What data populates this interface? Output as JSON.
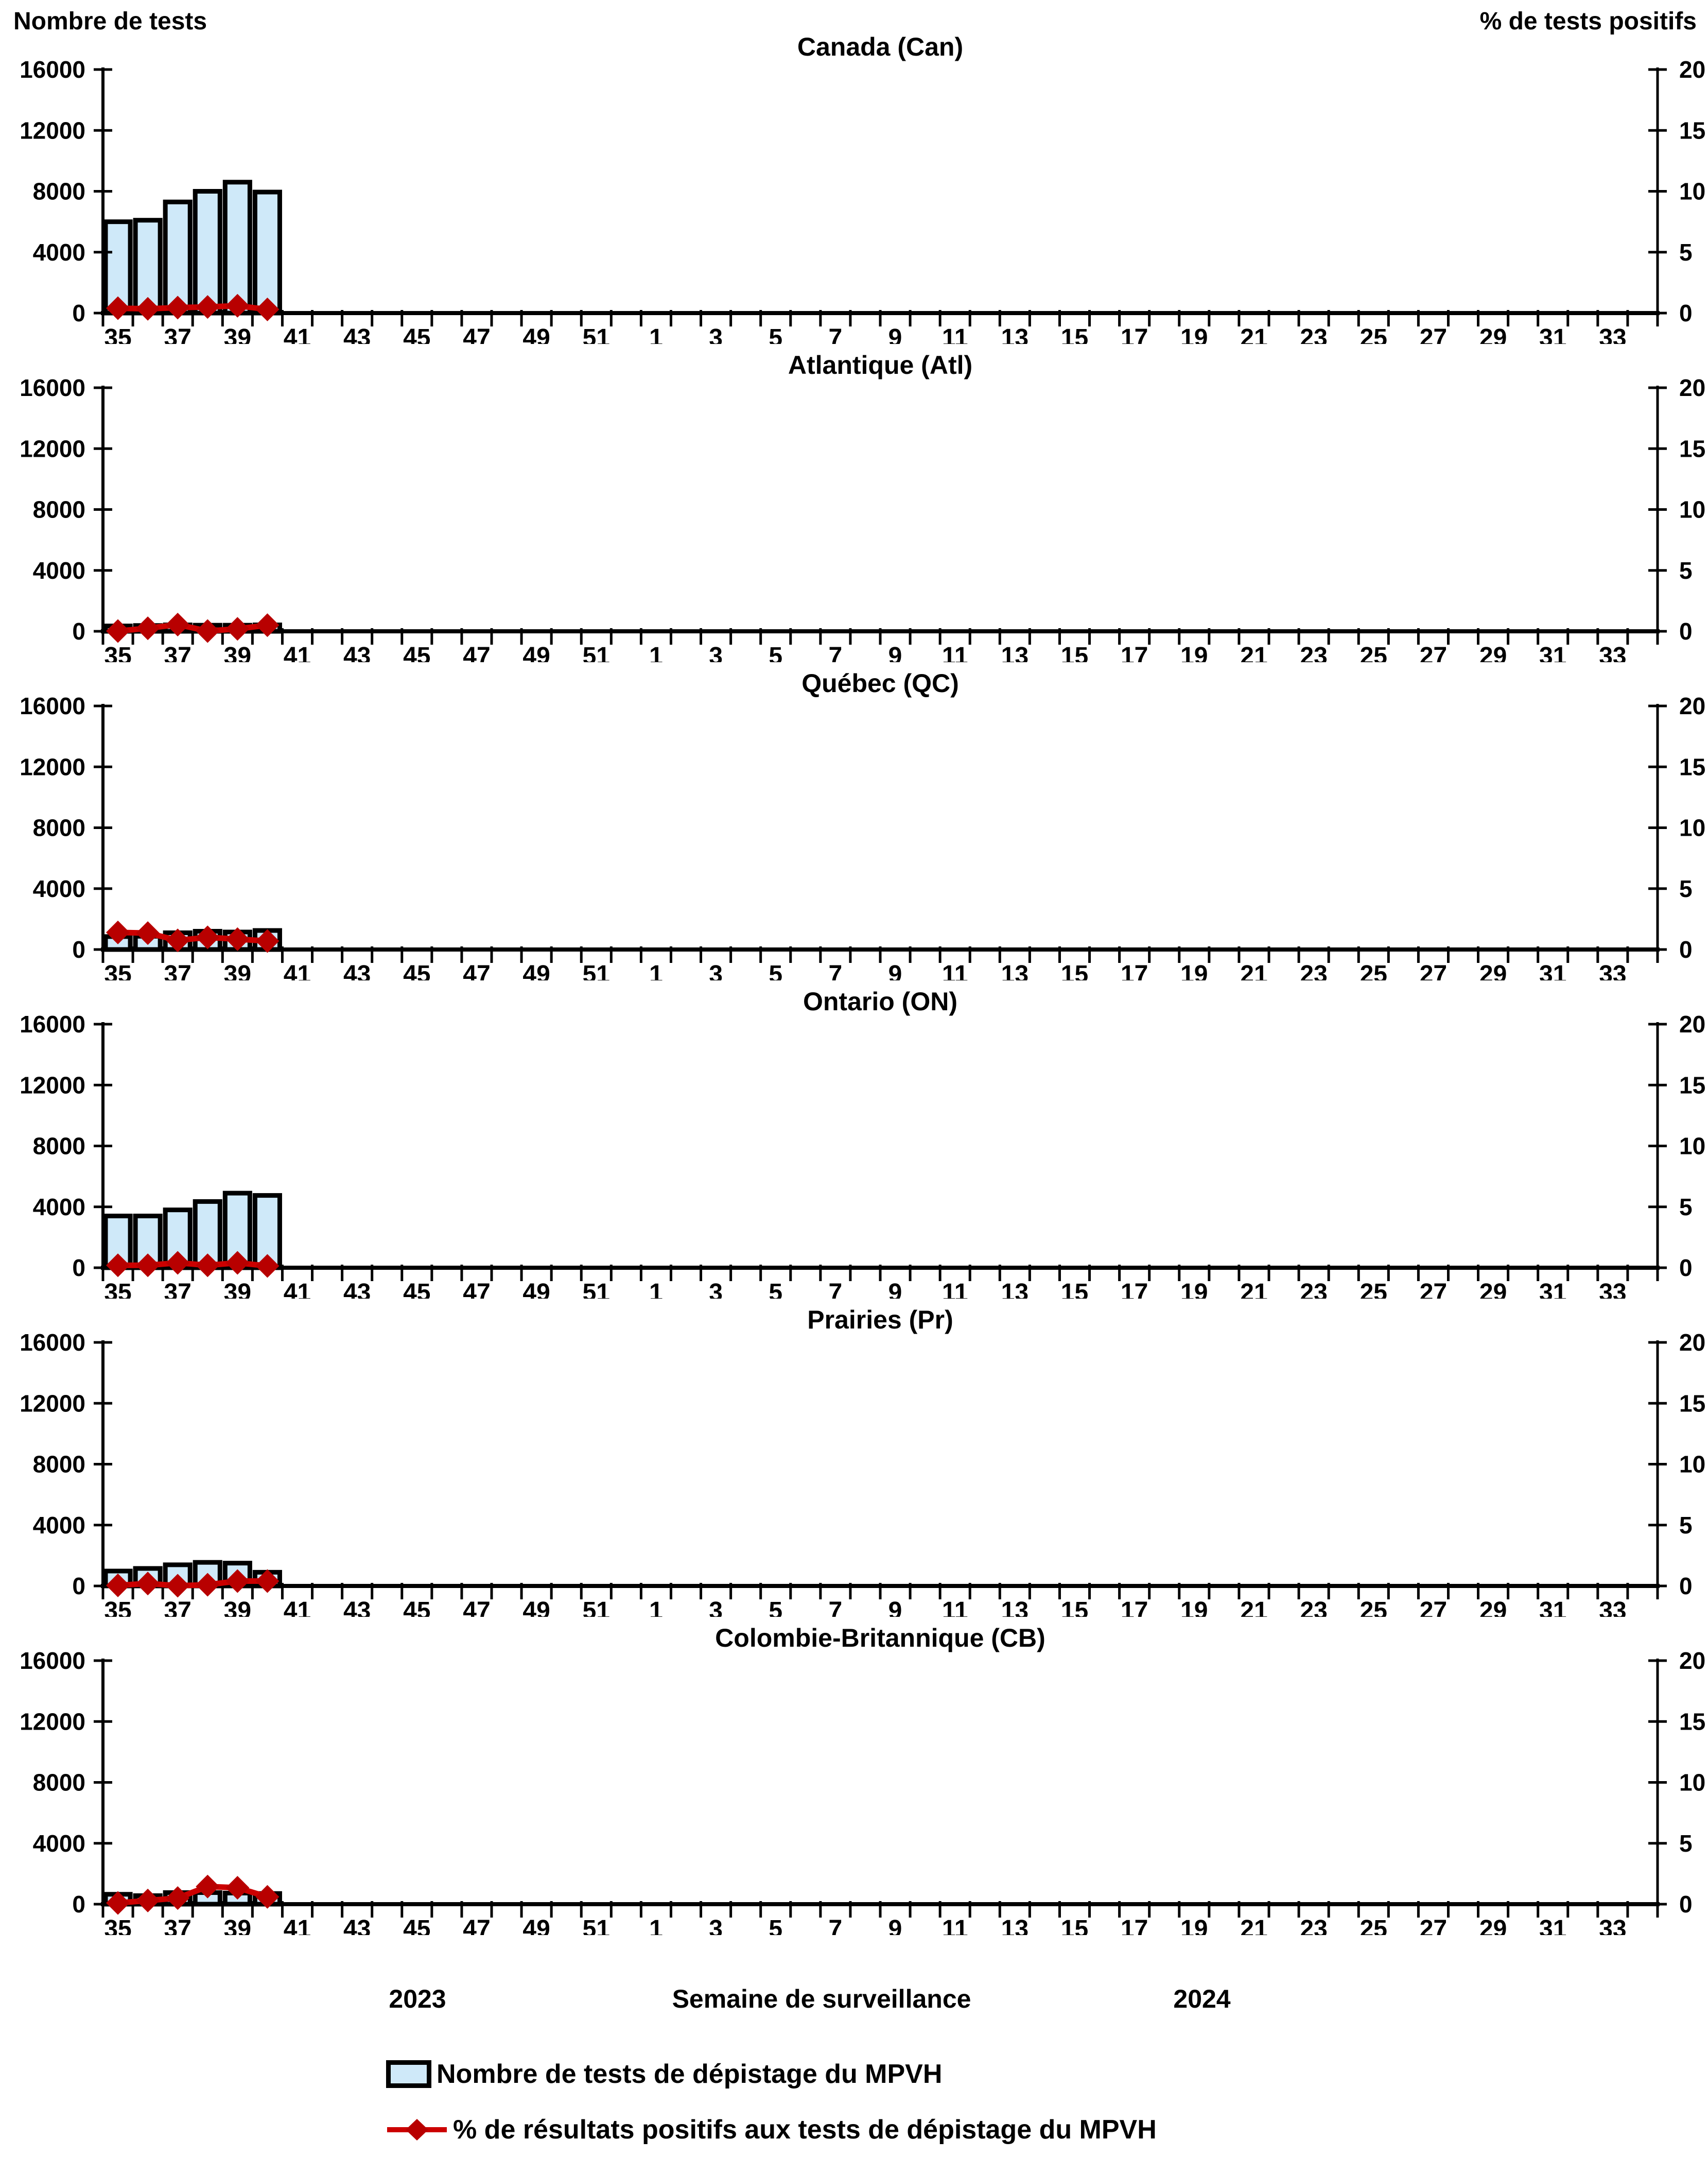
{
  "figure": {
    "left_axis_title": "Nombre de tests",
    "right_axis_title": "% de tests positifs",
    "left_axis": {
      "ticks": [
        0,
        4000,
        8000,
        12000,
        16000
      ],
      "max": 16000
    },
    "right_axis": {
      "ticks": [
        0,
        5,
        10,
        15,
        20
      ],
      "max": 20
    },
    "x_axis": {
      "year_left": "2023",
      "title": "Semaine de surveillance",
      "year_right": "2024",
      "weeks_total": 52,
      "tick_labels": [
        "35",
        "37",
        "39",
        "41",
        "43",
        "45",
        "47",
        "49",
        "51",
        "1",
        "3",
        "5",
        "7",
        "9",
        "11",
        "13",
        "15",
        "17",
        "19",
        "21",
        "23",
        "25",
        "27",
        "29",
        "31",
        "33"
      ]
    },
    "legend_bar_label": "Nombre de tests de dépistage du MPVH",
    "legend_line_label": "% de résultats positifs aux tests de dépistage du MPVH",
    "colors": {
      "bar_fill": "#cfe9f9",
      "bar_border": "#000000",
      "line": "#cc0000",
      "marker": "#b80000",
      "axis": "#000000"
    }
  },
  "chart_data": [
    {
      "type": "bar+line",
      "id": "canada",
      "title": "Canada (Can)",
      "xlabel": "Semaine de surveillance",
      "ylabel_left": "Nombre de tests",
      "ylabel_right": "% de tests positifs",
      "ylim_left": [
        0,
        16000
      ],
      "ylim_right": [
        0,
        20
      ],
      "weeks": [
        35,
        36,
        37,
        38,
        39,
        40
      ],
      "tests": [
        6000,
        6100,
        7300,
        8000,
        8600,
        7950
      ],
      "pct_positifs": [
        0.4,
        0.35,
        0.45,
        0.5,
        0.6,
        0.3
      ]
    },
    {
      "type": "bar+line",
      "id": "atlantique",
      "title": "Atlantique (Atl)",
      "ylim_left": [
        0,
        16000
      ],
      "ylim_right": [
        0,
        20
      ],
      "weeks": [
        35,
        36,
        37,
        38,
        39,
        40
      ],
      "tests": [
        350,
        380,
        420,
        400,
        400,
        420
      ],
      "pct_positifs": [
        0.02,
        0.25,
        0.55,
        0.02,
        0.2,
        0.5
      ]
    },
    {
      "type": "bar+line",
      "id": "quebec",
      "title": "Québec (QC)",
      "ylim_left": [
        0,
        16000
      ],
      "ylim_right": [
        0,
        20
      ],
      "weeks": [
        35,
        36,
        37,
        38,
        39,
        40
      ],
      "tests": [
        850,
        870,
        1100,
        1200,
        1150,
        1250
      ],
      "pct_positifs": [
        1.4,
        1.35,
        0.75,
        1.0,
        0.85,
        0.7
      ]
    },
    {
      "type": "bar+line",
      "id": "ontario",
      "title": "Ontario (ON)",
      "ylim_left": [
        0,
        16000
      ],
      "ylim_right": [
        0,
        20
      ],
      "weeks": [
        35,
        36,
        37,
        38,
        39,
        40
      ],
      "tests": [
        3400,
        3400,
        3800,
        4350,
        4900,
        4750
      ],
      "pct_positifs": [
        0.2,
        0.2,
        0.4,
        0.2,
        0.4,
        0.15
      ]
    },
    {
      "type": "bar+line",
      "id": "prairies",
      "title": "Prairies (Pr)",
      "ylim_left": [
        0,
        16000
      ],
      "ylim_right": [
        0,
        20
      ],
      "weeks": [
        35,
        36,
        37,
        38,
        39,
        40
      ],
      "tests": [
        980,
        1150,
        1390,
        1550,
        1500,
        900
      ],
      "pct_positifs": [
        0.05,
        0.2,
        0.02,
        0.1,
        0.4,
        0.4
      ]
    },
    {
      "type": "bar+line",
      "id": "colombie-britannique",
      "title": "Colombie-Britannique (CB)",
      "ylim_left": [
        0,
        16000
      ],
      "ylim_right": [
        0,
        20
      ],
      "weeks": [
        35,
        36,
        37,
        38,
        39,
        40
      ],
      "tests": [
        650,
        560,
        760,
        760,
        730,
        700
      ],
      "pct_positifs": [
        0.1,
        0.3,
        0.5,
        1.45,
        1.35,
        0.6
      ]
    }
  ]
}
